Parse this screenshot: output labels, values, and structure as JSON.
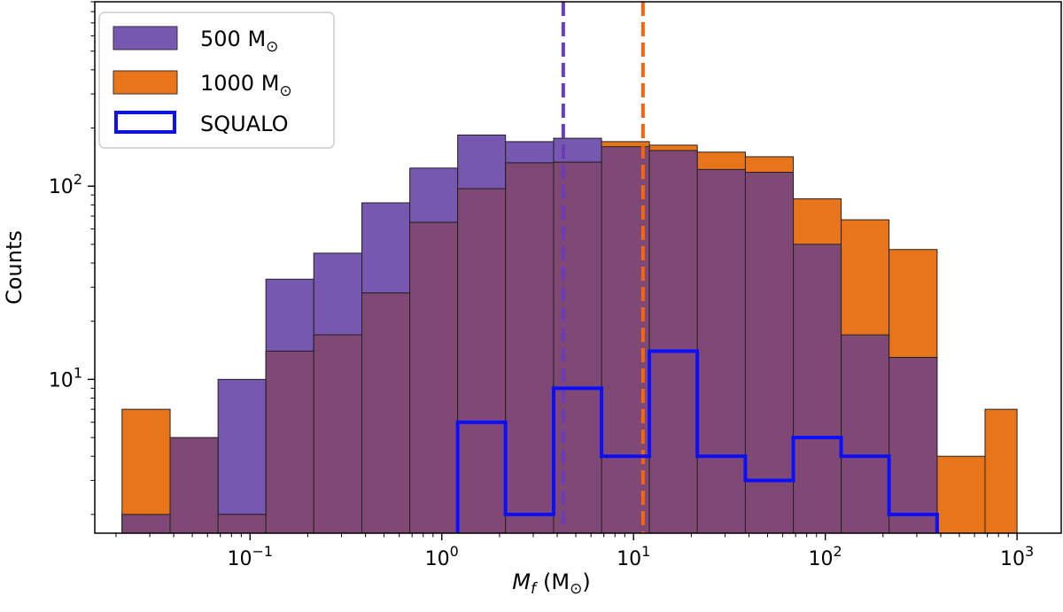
{
  "chart_data": {
    "type": "histogram",
    "x_scale": "log",
    "y_scale": "log",
    "xlim": [
      0.0155,
      1700
    ],
    "ylim": [
      1.6,
      900
    ],
    "xlabel": {
      "main": "M",
      "sub": "f",
      "units": "(M",
      "units_close": ")"
    },
    "ylabel": "Counts",
    "x_ticks": [
      {
        "value": 0.1,
        "base": "10",
        "exp": "−1"
      },
      {
        "value": 1,
        "base": "10",
        "exp": "0"
      },
      {
        "value": 10,
        "base": "10",
        "exp": "1"
      },
      {
        "value": 100,
        "base": "10",
        "exp": "2"
      },
      {
        "value": 1000,
        "base": "10",
        "exp": "3"
      }
    ],
    "y_ticks": [
      {
        "value": 10,
        "base": "10",
        "exp": "1"
      },
      {
        "value": 100,
        "base": "10",
        "exp": "2"
      }
    ],
    "bin_edges": [
      0.0215,
      0.0383,
      0.0681,
      0.121,
      0.215,
      0.383,
      0.681,
      1.21,
      2.15,
      3.83,
      6.81,
      12.1,
      21.5,
      38.3,
      68.1,
      121,
      215,
      383,
      681,
      1000
    ],
    "series": [
      {
        "name": "500 M",
        "sym": "⊙",
        "style": "filled",
        "color": "#7758b0",
        "counts": [
          2,
          5,
          10,
          33,
          45,
          82,
          124,
          184,
          170,
          177,
          160,
          153,
          122,
          118,
          50,
          17,
          13,
          0,
          0
        ]
      },
      {
        "name": "1000 M",
        "sym": "⊙",
        "style": "filled",
        "color": "#e8751a",
        "counts": [
          7,
          5,
          2,
          14,
          17,
          28,
          65,
          97,
          132,
          133,
          170,
          163,
          150,
          142,
          86,
          67,
          47,
          4,
          7
        ]
      },
      {
        "name": "SQUALO",
        "style": "step",
        "color": "#0a10ff",
        "counts": [
          0,
          0,
          0,
          0,
          0,
          0,
          0,
          6,
          2,
          9,
          4,
          14,
          4,
          3,
          5,
          4,
          2,
          0,
          0
        ]
      }
    ],
    "overlap_color": "#804874",
    "vlines": [
      {
        "value": 4.3,
        "color": "#6a3db8",
        "style": "dashed",
        "series": "500 M"
      },
      {
        "value": 11.2,
        "color": "#f0670f",
        "style": "dashed",
        "series": "1000 M"
      }
    ],
    "legend_position": "top-left"
  }
}
